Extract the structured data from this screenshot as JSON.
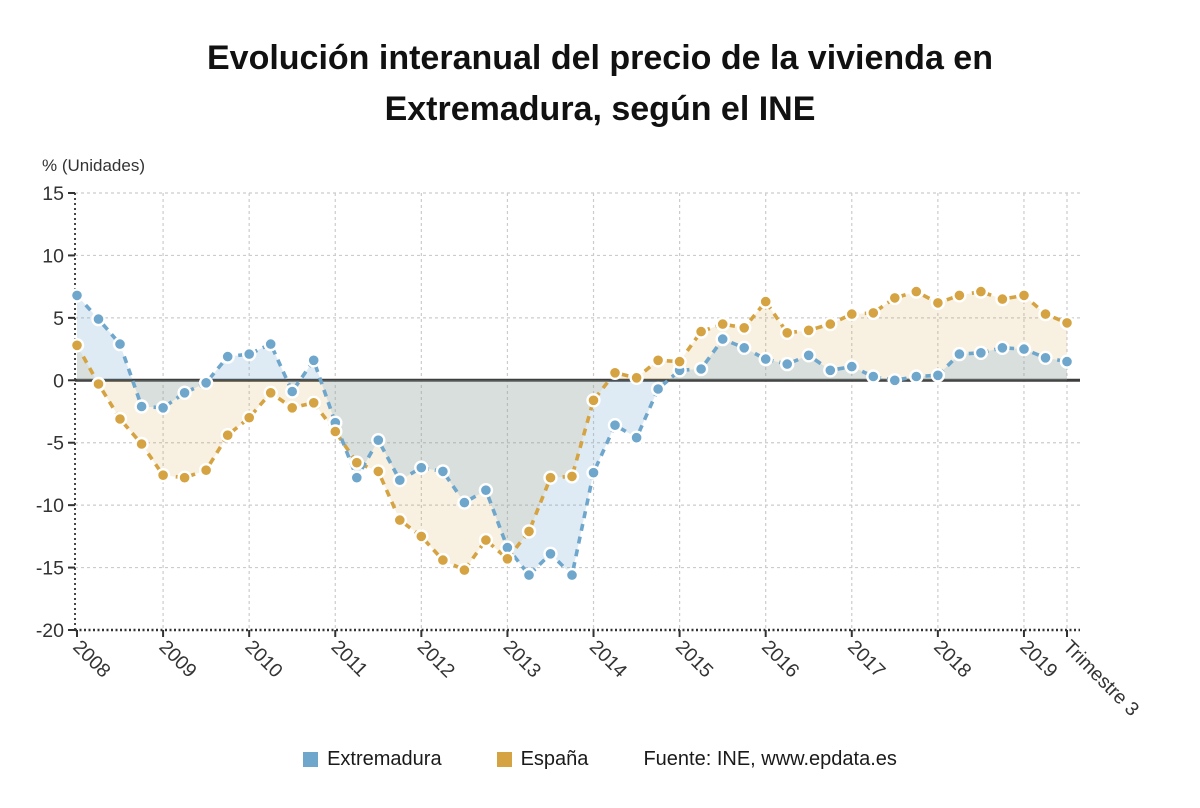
{
  "title": "Evolución interanual del precio de la vivienda en Extremadura, según el INE",
  "y_axis_label": "% (Unidades)",
  "source": "Fuente: INE, www.epdata.es",
  "chart_data": {
    "type": "line",
    "title": "Evolución interanual del precio de la vivienda en Extremadura, según el INE",
    "xlabel": "",
    "ylabel": "% (Unidades)",
    "ylim": [
      -20,
      15
    ],
    "y_ticks": [
      15,
      10,
      5,
      0,
      -5,
      -10,
      -15,
      -20
    ],
    "grid": "dashed",
    "zero_line": true,
    "legend_position": "bottom",
    "categories": [
      "2008 T1",
      "2008 T2",
      "2008 T3",
      "2008 T4",
      "2009 T1",
      "2009 T2",
      "2009 T3",
      "2009 T4",
      "2010 T1",
      "2010 T2",
      "2010 T3",
      "2010 T4",
      "2011 T1",
      "2011 T2",
      "2011 T3",
      "2011 T4",
      "2012 T1",
      "2012 T2",
      "2012 T3",
      "2012 T4",
      "2013 T1",
      "2013 T2",
      "2013 T3",
      "2013 T4",
      "2014 T1",
      "2014 T2",
      "2014 T3",
      "2014 T4",
      "2015 T1",
      "2015 T2",
      "2015 T3",
      "2015 T4",
      "2016 T1",
      "2016 T2",
      "2016 T3",
      "2016 T4",
      "2017 T1",
      "2017 T2",
      "2017 T3",
      "2017 T4",
      "2018 T1",
      "2018 T2",
      "2018 T3",
      "2018 T4",
      "2019 T1",
      "2019 T2",
      "2019 T3"
    ],
    "x_ticks": [
      {
        "label": "2008",
        "index": 0
      },
      {
        "label": "2009",
        "index": 4
      },
      {
        "label": "2010",
        "index": 8
      },
      {
        "label": "2011",
        "index": 12
      },
      {
        "label": "2012",
        "index": 16
      },
      {
        "label": "2013",
        "index": 20
      },
      {
        "label": "2014",
        "index": 24
      },
      {
        "label": "2015",
        "index": 28
      },
      {
        "label": "2016",
        "index": 32
      },
      {
        "label": "2017",
        "index": 36
      },
      {
        "label": "2018",
        "index": 40
      },
      {
        "label": "2019",
        "index": 44
      },
      {
        "label": "Trimestre 3",
        "index": 46
      }
    ],
    "series": [
      {
        "name": "Extremadura",
        "color": "#6fa6cc",
        "fill": "rgba(111,166,204,0.22)",
        "values": [
          6.8,
          4.9,
          2.9,
          -2.1,
          -2.2,
          -1.0,
          -0.2,
          1.9,
          2.1,
          2.9,
          -0.9,
          1.6,
          -3.4,
          -7.8,
          -4.8,
          -8.0,
          -7.0,
          -7.3,
          -9.8,
          -8.8,
          -13.4,
          -15.6,
          -13.9,
          -15.6,
          -7.4,
          -3.6,
          -4.6,
          -0.7,
          0.8,
          0.9,
          3.3,
          2.6,
          1.7,
          1.3,
          2.0,
          0.8,
          1.1,
          0.3,
          0.0,
          0.3,
          0.4,
          2.1,
          2.2,
          2.6,
          2.5,
          1.8,
          1.5
        ]
      },
      {
        "name": "España",
        "color": "#d5a341",
        "fill": "rgba(213,163,65,0.16)",
        "values": [
          2.8,
          -0.3,
          -3.1,
          -5.1,
          -7.6,
          -7.8,
          -7.2,
          -4.4,
          -3.0,
          -1.0,
          -2.2,
          -1.8,
          -4.1,
          -6.6,
          -7.3,
          -11.2,
          -12.5,
          -14.4,
          -15.2,
          -12.8,
          -14.3,
          -12.1,
          -7.8,
          -7.7,
          -1.6,
          0.6,
          0.2,
          1.6,
          1.5,
          3.9,
          4.5,
          4.2,
          6.3,
          3.8,
          4.0,
          4.5,
          5.3,
          5.4,
          6.6,
          7.1,
          6.2,
          6.8,
          7.1,
          6.5,
          6.8,
          5.3,
          4.6
        ]
      }
    ]
  }
}
